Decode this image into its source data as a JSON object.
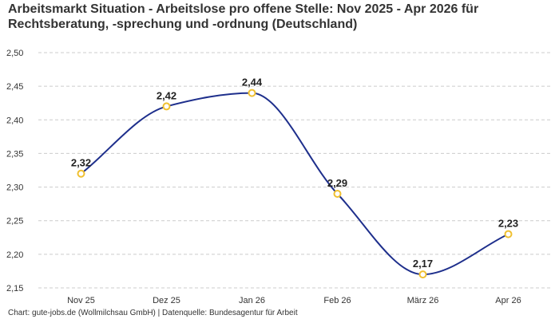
{
  "title": "Arbeitsmarkt Situation - Arbeitslose pro offene Stelle: Nov 2025 - Apr 2026 für Rechtsberatung, -sprechung und -ordnung (Deutschland)",
  "footer": "Chart: gute-jobs.de (Wollmilchsau GmbH) | Datenquelle: Bundesagentur für Arbeit",
  "chart_data": {
    "type": "line",
    "title": "Arbeitsmarkt Situation - Arbeitslose pro offene Stelle: Nov 2025 - Apr 2026 für Rechtsberatung, -sprechung und -ordnung (Deutschland)",
    "categories": [
      "Nov 25",
      "Dez 25",
      "Jan 26",
      "Feb 26",
      "März 26",
      "Apr 26"
    ],
    "values": [
      2.32,
      2.42,
      2.44,
      2.29,
      2.17,
      2.23
    ],
    "data_labels": [
      "2,32",
      "2,42",
      "2,44",
      "2,29",
      "2,17",
      "2,23"
    ],
    "ylim": [
      2.15,
      2.5
    ],
    "yticks": [
      2.15,
      2.2,
      2.25,
      2.3,
      2.35,
      2.4,
      2.45,
      2.5
    ],
    "ytick_labels": [
      "2,15",
      "2,20",
      "2,25",
      "2,30",
      "2,35",
      "2,40",
      "2,45",
      "2,50"
    ],
    "grid": "horizontal dashed",
    "line_color": "#1e2f8c",
    "marker_color": "#f0c030",
    "legend": "none"
  }
}
